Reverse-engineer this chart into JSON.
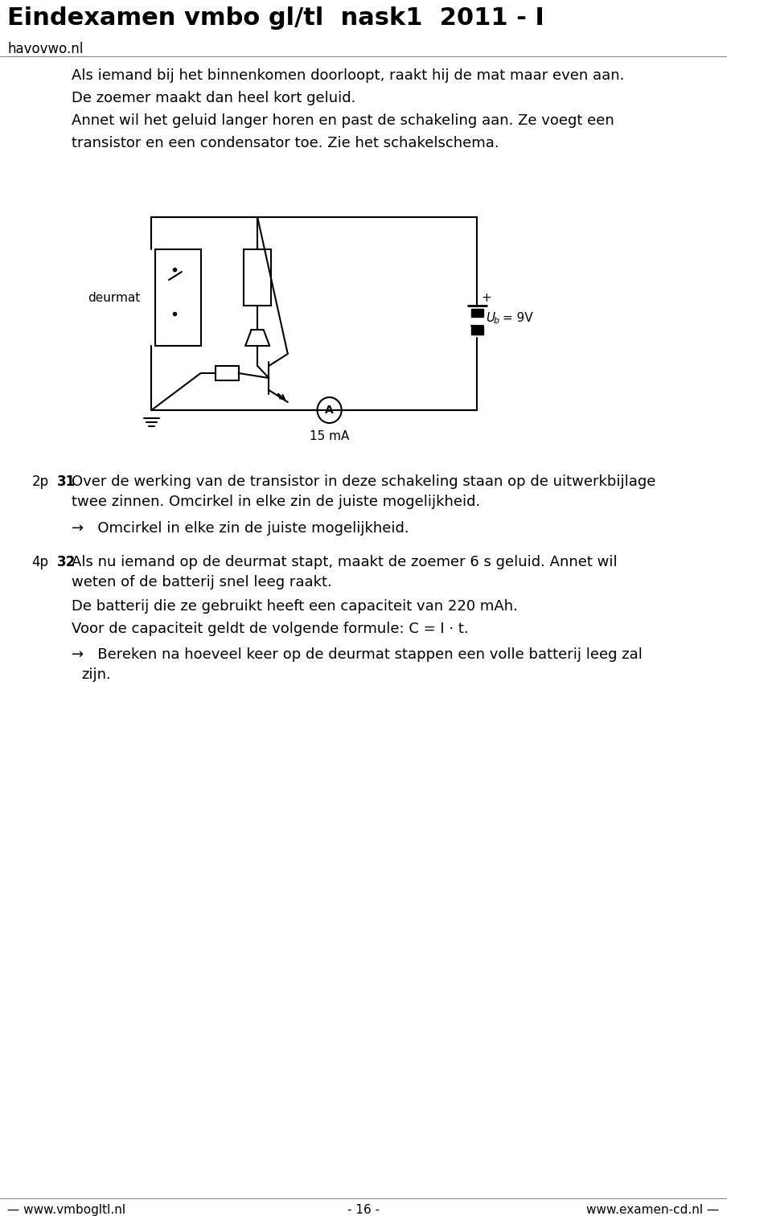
{
  "title": "Eindexamen vmbo gl/tl  nask1  2011 - I",
  "subtitle": "havovwo.nl",
  "bg_color": "#ffffff",
  "text_color": "#000000",
  "body_text_1": "Als iemand bij het binnenkomen doorloopt, raakt hij de mat maar even aan.\nDe zoemer maakt dan heel kort geluid.\nAnnet wil het geluid langer horen en past de schakeling aan. Ze voegt een\ntransistor en een condensator toe. Zie het schakelschema.",
  "label_2p": "2p",
  "label_31": "31",
  "text_31": "Over de werking van de transistor in deze schakeling staan op de uitwerkbijlage\ntweezinnen. Omcirkel in elke zin de juiste mogelijkheid.",
  "arrow_31": "→  Omcirkel in elke zin de juiste mogelijkheid.",
  "label_4p": "4p",
  "label_32": "32",
  "text_32_1": "Als nu iemand op de deurmat stapt, maakt de zoemer 6 s geluid. Annet wil",
  "text_32_2": "weten of de batterij snel leeg raakt.",
  "text_32_3": "De batterij die ze gebruikt heeft een capaciteit van 220 mAh.",
  "text_32_4": "Voor de capaciteit geldt de volgende formule: C = I · t.",
  "arrow_32": "→  Bereken na hoeveel keer op de deurmat stappen een volle batterij leeg zal\n    zijn.",
  "footer_left": "— www.vmbogltl.nl",
  "footer_center": "- 16 -",
  "footer_right": "www.examen-cd.nl —",
  "circuit_label": "deurmat",
  "circuit_ub": "U",
  "circuit_ub_sub": "b",
  "circuit_ub_val": " = 9V",
  "circuit_ma": "15 mA",
  "circuit_A": "A"
}
